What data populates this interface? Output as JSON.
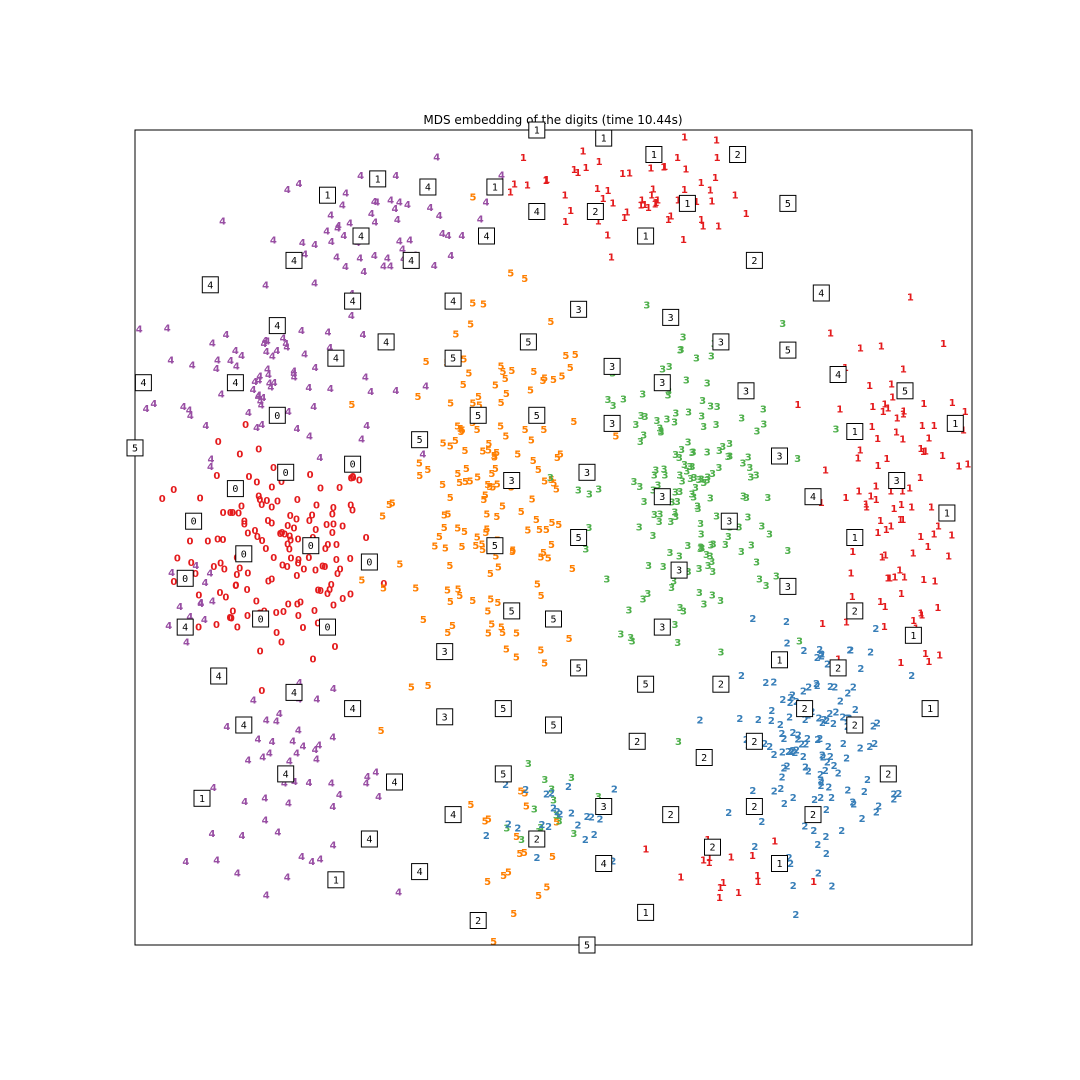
{
  "chart_data": {
    "type": "scatter",
    "title": "MDS embedding of the digits (time 10.44s)",
    "xlabel": "",
    "ylabel": "",
    "xlim": [
      0,
      1
    ],
    "ylim": [
      0,
      1
    ],
    "grid": false,
    "legend": "none",
    "colors": {
      "0": "#e41a1c",
      "1": "#e41a1c",
      "2": "#377eb8",
      "3": "#4daf4a",
      "4": "#984ea3",
      "5": "#ff7f00"
    },
    "clusters": [
      {
        "label": "0",
        "center": [
          0.17,
          0.48
        ],
        "spread": [
          0.08,
          0.085
        ],
        "count": 150
      },
      {
        "label": "4",
        "center": [
          0.16,
          0.7
        ],
        "spread": [
          0.09,
          0.065
        ],
        "count": 75
      },
      {
        "label": "4",
        "center": [
          0.3,
          0.88
        ],
        "spread": [
          0.09,
          0.05
        ],
        "count": 55
      },
      {
        "label": "4",
        "center": [
          0.18,
          0.2
        ],
        "spread": [
          0.08,
          0.07
        ],
        "count": 55
      },
      {
        "label": "4",
        "center": [
          0.07,
          0.42
        ],
        "spread": [
          0.025,
          0.06
        ],
        "count": 12
      },
      {
        "label": "5",
        "center": [
          0.43,
          0.55
        ],
        "spread": [
          0.08,
          0.15
        ],
        "count": 160
      },
      {
        "label": "5",
        "center": [
          0.45,
          0.13
        ],
        "spread": [
          0.05,
          0.05
        ],
        "count": 20
      },
      {
        "label": "3",
        "center": [
          0.66,
          0.55
        ],
        "spread": [
          0.075,
          0.14
        ],
        "count": 170
      },
      {
        "label": "3",
        "center": [
          0.5,
          0.18
        ],
        "spread": [
          0.03,
          0.04
        ],
        "count": 14
      },
      {
        "label": "1",
        "center": [
          0.9,
          0.55
        ],
        "spread": [
          0.055,
          0.14
        ],
        "count": 100
      },
      {
        "label": "1",
        "center": [
          0.6,
          0.92
        ],
        "spread": [
          0.09,
          0.045
        ],
        "count": 60
      },
      {
        "label": "1",
        "center": [
          0.72,
          0.08
        ],
        "spread": [
          0.07,
          0.035
        ],
        "count": 16
      },
      {
        "label": "2",
        "center": [
          0.81,
          0.25
        ],
        "spread": [
          0.06,
          0.09
        ],
        "count": 140
      },
      {
        "label": "2",
        "center": [
          0.52,
          0.15
        ],
        "spread": [
          0.06,
          0.04
        ],
        "count": 24
      }
    ],
    "thumbnails": [
      {
        "digit": "1",
        "x": 0.48,
        "y": 1.0
      },
      {
        "digit": "1",
        "x": 0.56,
        "y": 0.99
      },
      {
        "digit": "1",
        "x": 0.62,
        "y": 0.97
      },
      {
        "digit": "2",
        "x": 0.72,
        "y": 0.97
      },
      {
        "digit": "1",
        "x": 0.29,
        "y": 0.94
      },
      {
        "digit": "4",
        "x": 0.35,
        "y": 0.93
      },
      {
        "digit": "1",
        "x": 0.43,
        "y": 0.93
      },
      {
        "digit": "1",
        "x": 0.23,
        "y": 0.92
      },
      {
        "digit": "4",
        "x": 0.48,
        "y": 0.9
      },
      {
        "digit": "2",
        "x": 0.55,
        "y": 0.9
      },
      {
        "digit": "1",
        "x": 0.66,
        "y": 0.91
      },
      {
        "digit": "5",
        "x": 0.78,
        "y": 0.91
      },
      {
        "digit": "4",
        "x": 0.27,
        "y": 0.87
      },
      {
        "digit": "4",
        "x": 0.42,
        "y": 0.87
      },
      {
        "digit": "1",
        "x": 0.61,
        "y": 0.87
      },
      {
        "digit": "4",
        "x": 0.19,
        "y": 0.84
      },
      {
        "digit": "4",
        "x": 0.33,
        "y": 0.84
      },
      {
        "digit": "2",
        "x": 0.74,
        "y": 0.84
      },
      {
        "digit": "4",
        "x": 0.09,
        "y": 0.81
      },
      {
        "digit": "4",
        "x": 0.26,
        "y": 0.79
      },
      {
        "digit": "4",
        "x": 0.38,
        "y": 0.79
      },
      {
        "digit": "3",
        "x": 0.53,
        "y": 0.78
      },
      {
        "digit": "4",
        "x": 0.82,
        "y": 0.8
      },
      {
        "digit": "4",
        "x": 0.17,
        "y": 0.76
      },
      {
        "digit": "3",
        "x": 0.64,
        "y": 0.77
      },
      {
        "digit": "4",
        "x": 0.3,
        "y": 0.74
      },
      {
        "digit": "5",
        "x": 0.47,
        "y": 0.74
      },
      {
        "digit": "3",
        "x": 0.7,
        "y": 0.74
      },
      {
        "digit": "4",
        "x": 0.24,
        "y": 0.72
      },
      {
        "digit": "5",
        "x": 0.38,
        "y": 0.72
      },
      {
        "digit": "5",
        "x": 0.78,
        "y": 0.73
      },
      {
        "digit": "3",
        "x": 0.57,
        "y": 0.71
      },
      {
        "digit": "4",
        "x": 0.01,
        "y": 0.69
      },
      {
        "digit": "4",
        "x": 0.12,
        "y": 0.69
      },
      {
        "digit": "3",
        "x": 0.63,
        "y": 0.69
      },
      {
        "digit": "3",
        "x": 0.73,
        "y": 0.68
      },
      {
        "digit": "4",
        "x": 0.84,
        "y": 0.7
      },
      {
        "digit": "5",
        "x": 0.92,
        "y": 0.68
      },
      {
        "digit": "0",
        "x": 0.17,
        "y": 0.65
      },
      {
        "digit": "5",
        "x": 0.41,
        "y": 0.65
      },
      {
        "digit": "5",
        "x": 0.48,
        "y": 0.65
      },
      {
        "digit": "3",
        "x": 0.57,
        "y": 0.64
      },
      {
        "digit": "1",
        "x": 0.98,
        "y": 0.64
      },
      {
        "digit": "5",
        "x": 0.0,
        "y": 0.61
      },
      {
        "digit": "5",
        "x": 0.34,
        "y": 0.62
      },
      {
        "digit": "1",
        "x": 0.86,
        "y": 0.63
      },
      {
        "digit": "0",
        "x": 0.26,
        "y": 0.59
      },
      {
        "digit": "0",
        "x": 0.18,
        "y": 0.58
      },
      {
        "digit": "3",
        "x": 0.77,
        "y": 0.6
      },
      {
        "digit": "0",
        "x": 0.12,
        "y": 0.56
      },
      {
        "digit": "3",
        "x": 0.45,
        "y": 0.57
      },
      {
        "digit": "3",
        "x": 0.54,
        "y": 0.58
      },
      {
        "digit": "3",
        "x": 0.91,
        "y": 0.57
      },
      {
        "digit": "0",
        "x": 0.07,
        "y": 0.52
      },
      {
        "digit": "3",
        "x": 0.63,
        "y": 0.55
      },
      {
        "digit": "4",
        "x": 0.81,
        "y": 0.55
      },
      {
        "digit": "1",
        "x": 0.97,
        "y": 0.53
      },
      {
        "digit": "0",
        "x": 0.13,
        "y": 0.48
      },
      {
        "digit": "0",
        "x": 0.21,
        "y": 0.49
      },
      {
        "digit": "3",
        "x": 0.71,
        "y": 0.52
      },
      {
        "digit": "5",
        "x": 0.43,
        "y": 0.49
      },
      {
        "digit": "5",
        "x": 0.53,
        "y": 0.5
      },
      {
        "digit": "0",
        "x": 0.28,
        "y": 0.47
      },
      {
        "digit": "1",
        "x": 0.86,
        "y": 0.5
      },
      {
        "digit": "0",
        "x": 0.06,
        "y": 0.45
      },
      {
        "digit": "3",
        "x": 0.65,
        "y": 0.46
      },
      {
        "digit": "5",
        "x": 0.45,
        "y": 0.41
      },
      {
        "digit": "5",
        "x": 0.5,
        "y": 0.4
      },
      {
        "digit": "3",
        "x": 0.78,
        "y": 0.44
      },
      {
        "digit": "4",
        "x": 0.06,
        "y": 0.39
      },
      {
        "digit": "0",
        "x": 0.15,
        "y": 0.4
      },
      {
        "digit": "0",
        "x": 0.23,
        "y": 0.39
      },
      {
        "digit": "2",
        "x": 0.86,
        "y": 0.41
      },
      {
        "digit": "3",
        "x": 0.63,
        "y": 0.39
      },
      {
        "digit": "1",
        "x": 0.93,
        "y": 0.38
      },
      {
        "digit": "3",
        "x": 0.37,
        "y": 0.36
      },
      {
        "digit": "4",
        "x": 0.1,
        "y": 0.33
      },
      {
        "digit": "5",
        "x": 0.53,
        "y": 0.34
      },
      {
        "digit": "1",
        "x": 0.77,
        "y": 0.35
      },
      {
        "digit": "2",
        "x": 0.84,
        "y": 0.34
      },
      {
        "digit": "5",
        "x": 0.61,
        "y": 0.32
      },
      {
        "digit": "2",
        "x": 0.7,
        "y": 0.32
      },
      {
        "digit": "4",
        "x": 0.19,
        "y": 0.31
      },
      {
        "digit": "5",
        "x": 0.44,
        "y": 0.29
      },
      {
        "digit": "4",
        "x": 0.26,
        "y": 0.29
      },
      {
        "digit": "1",
        "x": 0.95,
        "y": 0.29
      },
      {
        "digit": "3",
        "x": 0.37,
        "y": 0.28
      },
      {
        "digit": "5",
        "x": 0.5,
        "y": 0.27
      },
      {
        "digit": "2",
        "x": 0.8,
        "y": 0.29
      },
      {
        "digit": "4",
        "x": 0.13,
        "y": 0.27
      },
      {
        "digit": "2",
        "x": 0.6,
        "y": 0.25
      },
      {
        "digit": "2",
        "x": 0.68,
        "y": 0.23
      },
      {
        "digit": "2",
        "x": 0.74,
        "y": 0.25
      },
      {
        "digit": "2",
        "x": 0.86,
        "y": 0.27
      },
      {
        "digit": "5",
        "x": 0.44,
        "y": 0.21
      },
      {
        "digit": "4",
        "x": 0.18,
        "y": 0.21
      },
      {
        "digit": "2",
        "x": 0.9,
        "y": 0.21
      },
      {
        "digit": "4",
        "x": 0.31,
        "y": 0.2
      },
      {
        "digit": "3",
        "x": 0.56,
        "y": 0.17
      },
      {
        "digit": "2",
        "x": 0.74,
        "y": 0.17
      },
      {
        "digit": "1",
        "x": 0.08,
        "y": 0.18
      },
      {
        "digit": "4",
        "x": 0.38,
        "y": 0.16
      },
      {
        "digit": "2",
        "x": 0.64,
        "y": 0.16
      },
      {
        "digit": "2",
        "x": 0.81,
        "y": 0.16
      },
      {
        "digit": "4",
        "x": 0.28,
        "y": 0.13
      },
      {
        "digit": "2",
        "x": 0.48,
        "y": 0.13
      },
      {
        "digit": "2",
        "x": 0.69,
        "y": 0.12
      },
      {
        "digit": "4",
        "x": 0.34,
        "y": 0.09
      },
      {
        "digit": "4",
        "x": 0.56,
        "y": 0.1
      },
      {
        "digit": "1",
        "x": 0.77,
        "y": 0.1
      },
      {
        "digit": "1",
        "x": 0.24,
        "y": 0.08
      },
      {
        "digit": "1",
        "x": 0.61,
        "y": 0.04
      },
      {
        "digit": "2",
        "x": 0.41,
        "y": 0.03
      },
      {
        "digit": "5",
        "x": 0.54,
        "y": 0.0
      }
    ]
  }
}
